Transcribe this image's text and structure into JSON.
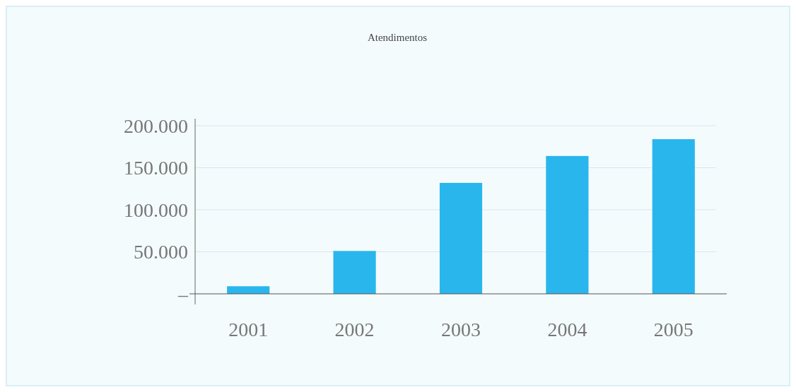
{
  "chart_data": {
    "type": "bar",
    "title": "Atendimentos",
    "categories": [
      "2001",
      "2002",
      "2003",
      "2004",
      "2005"
    ],
    "values": [
      9000,
      51000,
      132000,
      164000,
      184000
    ],
    "color": "#29b6ec",
    "ylim": [
      0,
      200000
    ],
    "yticks": [
      {
        "value": 0,
        "label": "–"
      },
      {
        "value": 50000,
        "label": "50.000"
      },
      {
        "value": 100000,
        "label": "100.000"
      },
      {
        "value": 150000,
        "label": "150.000"
      },
      {
        "value": 200000,
        "label": "200.000"
      }
    ],
    "grid": "y"
  }
}
